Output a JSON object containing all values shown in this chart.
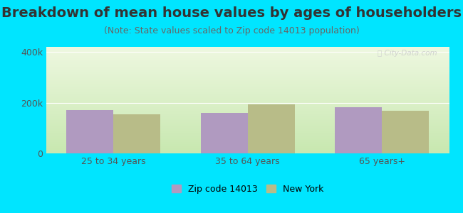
{
  "title": "Breakdown of mean house values by ages of householders",
  "subtitle": "(Note: State values scaled to Zip code 14013 population)",
  "categories": [
    "25 to 34 years",
    "35 to 64 years",
    "65 years+"
  ],
  "zip_values": [
    170000,
    160000,
    183000
  ],
  "ny_values": [
    155000,
    193000,
    168000
  ],
  "zip_color": "#b09ac0",
  "ny_color": "#b8bc88",
  "background_outer": "#00e5ff",
  "ylim": [
    0,
    420000
  ],
  "ytick_labels": [
    "0",
    "200k",
    "400k"
  ],
  "ytick_values": [
    0,
    200000,
    400000
  ],
  "legend_zip_label": "Zip code 14013",
  "legend_ny_label": "New York",
  "bar_width": 0.35,
  "title_fontsize": 14,
  "subtitle_fontsize": 9,
  "tick_label_color": "#555555"
}
